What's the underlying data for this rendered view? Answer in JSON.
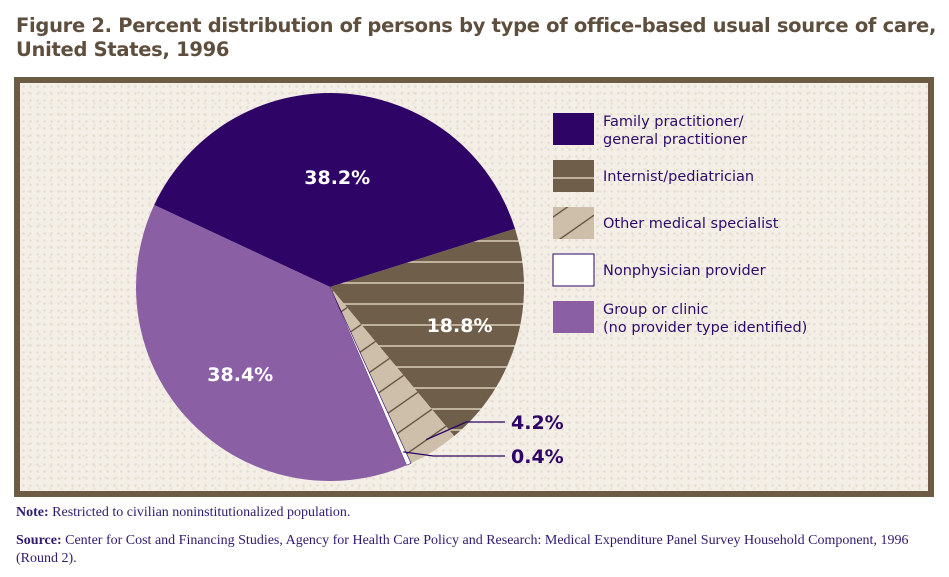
{
  "chart_data": {
    "type": "pie",
    "title": "Figure 2. Percent distribution of persons by type of office-based usual source of care, United States, 1996",
    "slices": [
      {
        "label": "Family practitioner/ general practitioner",
        "label_lines": [
          "Family practitioner/",
          "general practitioner"
        ],
        "value": 38.2,
        "display": "38.2%",
        "color": "#2e0566",
        "pattern": "solid"
      },
      {
        "label": "Internist/pediatrician",
        "label_lines": [
          "Internist/pediatrician"
        ],
        "value": 18.8,
        "display": "18.8%",
        "color": "#6e5e4a",
        "pattern": "horizontal-lines"
      },
      {
        "label": "Other medical specialist",
        "label_lines": [
          "Other medical specialist"
        ],
        "value": 4.2,
        "display": "4.2%",
        "color": "#cdbfa9",
        "pattern": "diagonal-lines"
      },
      {
        "label": "Nonphysician provider",
        "label_lines": [
          "Nonphysician provider"
        ],
        "value": 0.4,
        "display": "0.4%",
        "color": "#ffffff",
        "pattern": "solid"
      },
      {
        "label": "Group or clinic (no provider type identified)",
        "label_lines": [
          "Group or clinic",
          "(no provider type identified)"
        ],
        "value": 38.4,
        "display": "38.4%",
        "color": "#8a5fa3",
        "pattern": "solid"
      }
    ],
    "legend_position": "right"
  },
  "title_lines": [
    "Figure 2. Percent distribution of persons by type of office-based usual source of care,",
    "United States, 1996"
  ],
  "note": {
    "label": "Note:",
    "text": " Restricted to civilian noninstitutionalized population."
  },
  "source": {
    "label": "Source:",
    "text": " Center for Cost and Financing Studies, Agency for Health Care Policy and Research: Medical Expenditure Panel Survey Household Component, 1996 (Round 2)."
  }
}
